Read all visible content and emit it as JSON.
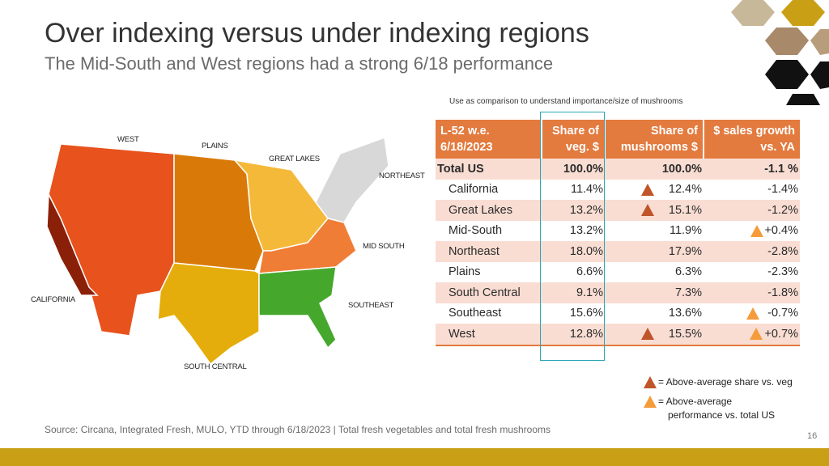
{
  "header": {
    "title": "Over indexing versus under indexing regions",
    "subtitle": "The Mid-South and West regions had a strong 6/18 performance"
  },
  "note": "Use as comparison to understand importance/size of mushrooms",
  "map": {
    "labels": {
      "west": "WEST",
      "plains": "PLAINS",
      "great_lakes": "GREAT LAKES",
      "northeast": "NORTHEAST",
      "mid_south": "MID SOUTH",
      "california": "CALIFORNIA",
      "southeast": "SOUTHEAST",
      "south_central": "SOUTH CENTRAL"
    },
    "colors": {
      "california": "#8b2008",
      "west": "#e8521d",
      "plains": "#d97a08",
      "great_lakes": "#f5b93a",
      "northeast": "#d8d8d8",
      "mid_south": "#f07d36",
      "south_central": "#e5ad0b",
      "southeast": "#45a82c"
    }
  },
  "table": {
    "headers": [
      "L-52 w.e. 6/18/2023",
      "Share of veg. $",
      "Share of mushrooms $",
      "$ sales growth vs. YA"
    ],
    "rows": [
      {
        "region": "Total US",
        "veg": "100.0%",
        "mush": "100.0%",
        "growth": "-1.1 %"
      },
      {
        "region": "California",
        "veg": "11.4%",
        "mush": "12.4%",
        "growth": "-1.4%"
      },
      {
        "region": "Great Lakes",
        "veg": "13.2%",
        "mush": "15.1%",
        "growth": "-1.2%"
      },
      {
        "region": "Mid-South",
        "veg": "13.2%",
        "mush": "11.9%",
        "growth": "+0.4%"
      },
      {
        "region": "Northeast",
        "veg": "18.0%",
        "mush": "17.9%",
        "growth": "-2.8%"
      },
      {
        "region": "Plains",
        "veg": "6.6%",
        "mush": "6.3%",
        "growth": "-2.3%"
      },
      {
        "region": "South Central",
        "veg": "9.1%",
        "mush": "7.3%",
        "growth": "-1.8%"
      },
      {
        "region": "Southeast",
        "veg": "15.6%",
        "mush": "13.6%",
        "growth": "-0.7%"
      },
      {
        "region": "West",
        "veg": "12.8%",
        "mush": "15.5%",
        "growth": "+0.7%"
      }
    ],
    "colors": {
      "header": "#e37a3e",
      "stripe": "#f9ddd3",
      "highlight_box": "#2aa5b4"
    }
  },
  "legend": {
    "dark": "= Above-average share vs. veg",
    "light_line1": "= Above-average",
    "light_line2": "performance vs. total US",
    "colors": {
      "dark": "#c0552a",
      "light": "#f59b3a"
    }
  },
  "footer": {
    "source": "Source: Circana, Integrated Fresh, MULO, YTD through 6/18/2023 | Total fresh vegetables and total fresh mushrooms",
    "page": "16",
    "bar_color": "#c9a015"
  }
}
